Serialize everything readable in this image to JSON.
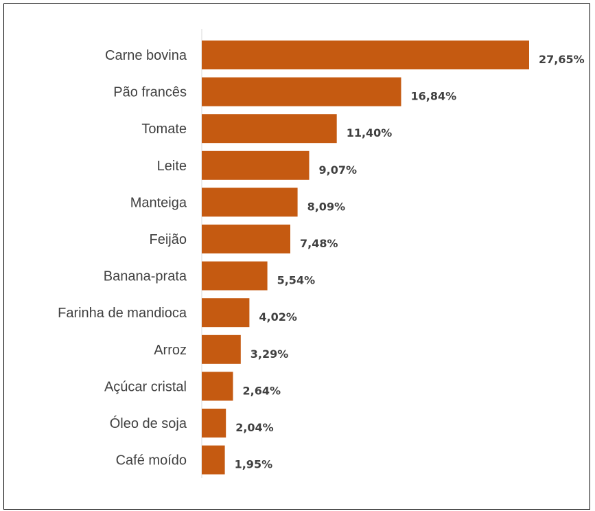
{
  "chart_data": {
    "type": "bar",
    "orientation": "horizontal",
    "categories": [
      "Carne bovina",
      "Pão francês",
      "Tomate",
      "Leite",
      "Manteiga",
      "Feijão",
      "Banana-prata",
      "Farinha de mandioca",
      "Arroz",
      "Açúcar cristal",
      "Óleo de soja",
      "Café moído"
    ],
    "values": [
      27.65,
      16.84,
      11.4,
      9.07,
      8.09,
      7.48,
      5.54,
      4.02,
      3.29,
      2.64,
      2.04,
      1.95
    ],
    "value_labels": [
      "27,65%",
      "16,84%",
      "11,40%",
      "9,07%",
      "8,09%",
      "7,48%",
      "5,54%",
      "4,02%",
      "3,29%",
      "2,64%",
      "2,04%",
      "1,95%"
    ],
    "title": "",
    "xlabel": "",
    "ylabel": "",
    "xlim": [
      0,
      27.65
    ],
    "grid": false,
    "legend": "none",
    "bar_color": "#C55A11",
    "text_color": "#404040",
    "axis_color": "#D9D9D9"
  }
}
